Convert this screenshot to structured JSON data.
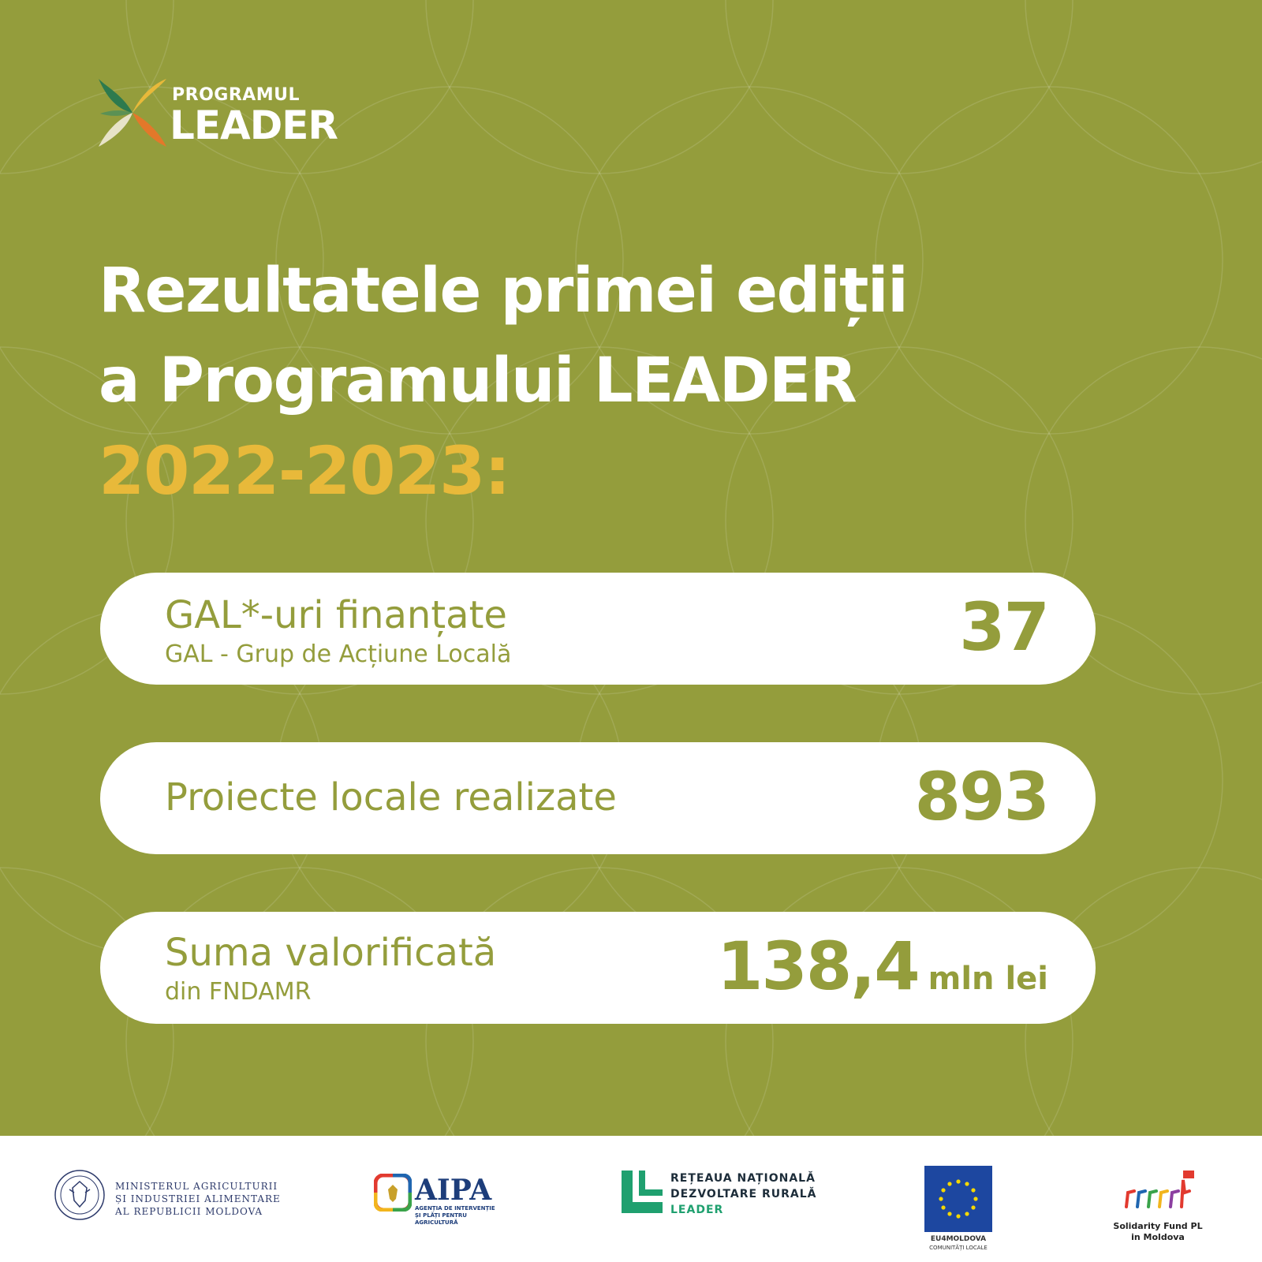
{
  "brand": {
    "line1": "PROGRAMUL",
    "line2": "LEADER"
  },
  "title": {
    "line1": "Rezultatele primei ediții",
    "line2": "a Programului LEADER",
    "year": "2022-2023:"
  },
  "stats": [
    {
      "label": "GAL*-uri finanțate",
      "sublabel": "GAL - Grup de Acțiune Locală",
      "value": "37",
      "unit": ""
    },
    {
      "label": "Proiecte locale realizate",
      "sublabel": "",
      "value": "893",
      "unit": ""
    },
    {
      "label": "Suma valorificată",
      "sublabel": "din FNDAMR",
      "value": "138,4",
      "unit": "mln lei"
    }
  ],
  "partners": {
    "ministry": {
      "line1": "MINISTERUL AGRICULTURII",
      "line2": "ȘI INDUSTRIEI ALIMENTARE",
      "line3": "AL REPUBLICII MOLDOVA"
    },
    "aipa": {
      "name": "AIPA",
      "sub": "AGENȚIA DE INTERVENȚIE ȘI PLĂȚI PENTRU AGRICULTURĂ"
    },
    "network": {
      "line1": "REȚEAUA NAȚIONALĂ",
      "line2": "DEZVOLTARE RURALĂ",
      "line3": "LEADER"
    },
    "eu": {
      "name": "EU4MOLDOVA",
      "sub": "COMUNITĂȚI LOCALE"
    },
    "solidarity": {
      "line1": "Solidarity Fund PL",
      "line2": "in Moldova"
    }
  },
  "colors": {
    "background": "#949d3c",
    "accent_year": "#e8b93a",
    "pill": "#ffffff",
    "text_on_pill": "#949d3c"
  }
}
